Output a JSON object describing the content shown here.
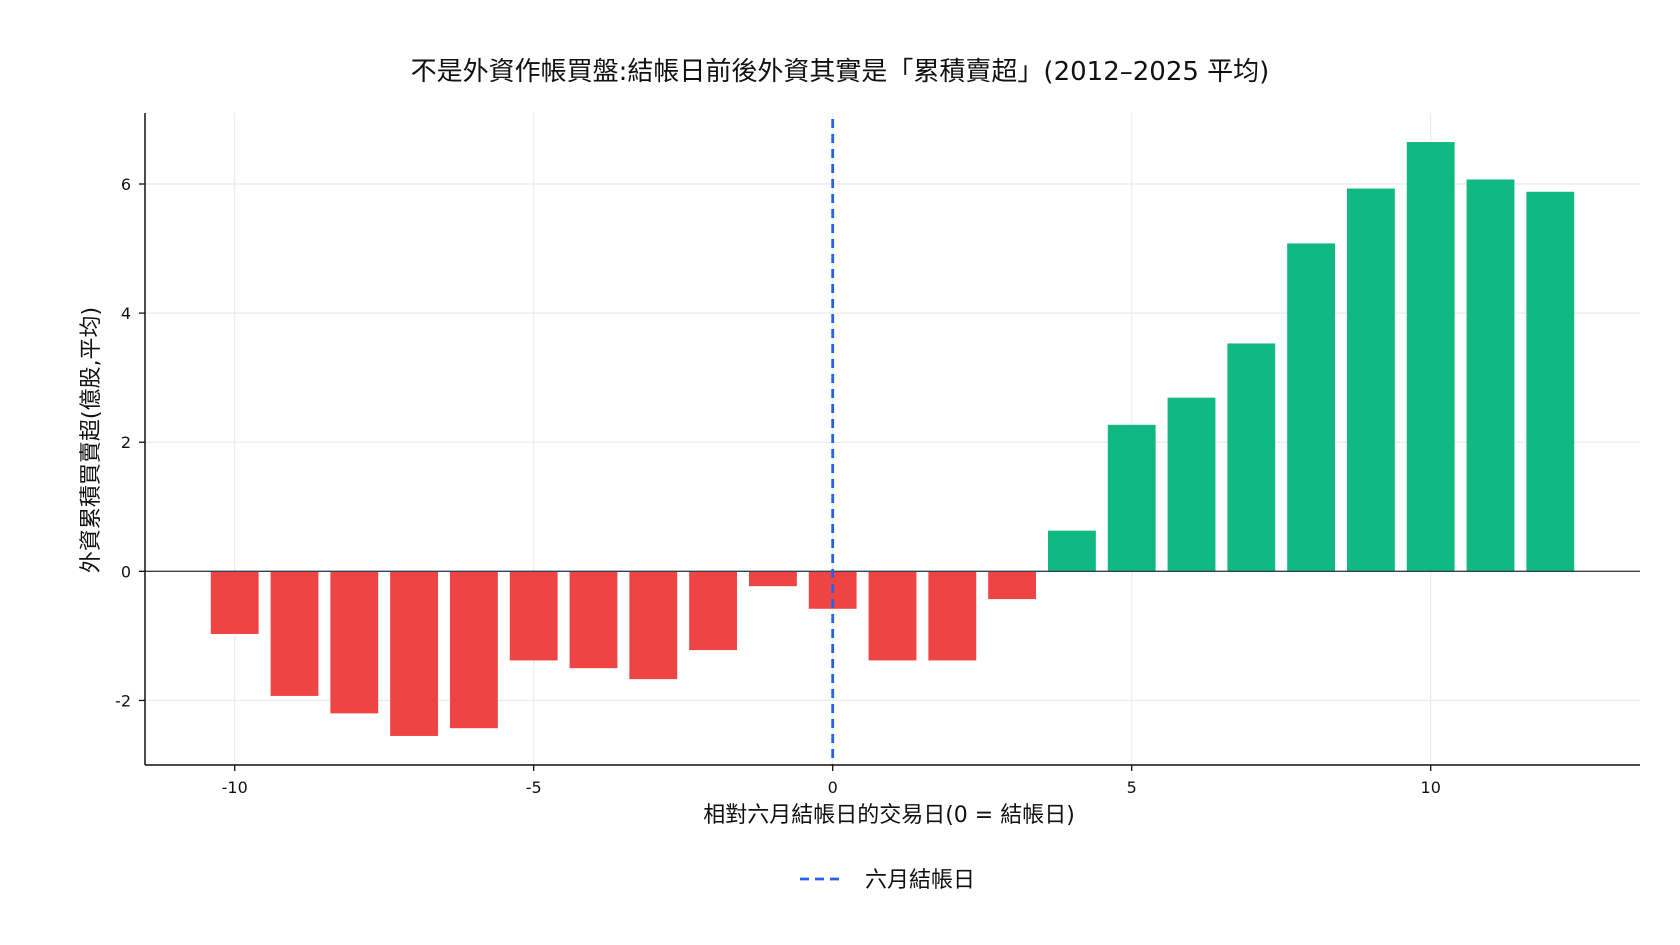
{
  "chart_data": {
    "type": "bar",
    "title": "不是外資作帳買盤:結帳日前後外資其實是「累積賣超」(2012–2025 平均)",
    "xlabel": "相對六月結帳日的交易日(0 = 結帳日)",
    "ylabel": "外資累積買賣超(億股,平均)",
    "x": [
      -10,
      -9,
      -8,
      -7,
      -6,
      -5,
      -4,
      -3,
      -2,
      -1,
      0,
      1,
      2,
      3,
      4,
      5,
      6,
      7,
      8,
      9,
      10,
      11,
      12
    ],
    "values": [
      -0.97,
      -1.93,
      -2.2,
      -2.55,
      -2.43,
      -1.38,
      -1.5,
      -1.67,
      -1.22,
      -0.23,
      -0.58,
      -1.38,
      -1.38,
      -0.43,
      0.63,
      2.27,
      2.69,
      3.53,
      5.08,
      5.93,
      6.65,
      6.07,
      5.88
    ],
    "xlim": [
      -11.5,
      13.5
    ],
    "ylim": [
      -3.0,
      7.1
    ],
    "xticks": [
      -10,
      -5,
      0,
      5,
      10
    ],
    "yticks": [
      -2,
      0,
      2,
      4,
      6
    ],
    "grid": true,
    "reference_line": {
      "x": 0,
      "style": "dashed",
      "label": "六月結帳日"
    },
    "legend": {
      "placement": "bottom-center",
      "entries": [
        "六月結帳日"
      ]
    },
    "colors": {
      "negative": "#ef4444",
      "positive": "#10b981",
      "reference_line": "#2563eb",
      "zero_line": "#334155",
      "grid": "#ebebeb",
      "axis": "#111111"
    }
  }
}
